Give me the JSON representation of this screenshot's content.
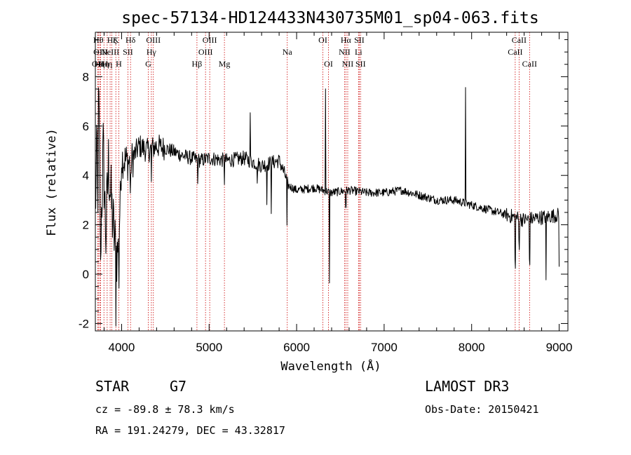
{
  "chart_data": {
    "type": "line",
    "title": "spec-57134-HD124433N430735M01_sp04-063.fits",
    "xlabel": "Wavelength (Å)",
    "ylabel": "Flux (relative)",
    "xlim": [
      3700,
      9100
    ],
    "ylim": [
      -2.3,
      9.8
    ],
    "xticks": [
      4000,
      5000,
      6000,
      7000,
      8000,
      9000
    ],
    "yticks": [
      -2,
      0,
      2,
      4,
      6,
      8
    ],
    "spectrum_anchors": [
      {
        "w": 3700,
        "f": 2.6
      },
      {
        "w": 3720,
        "f": 5.2
      },
      {
        "w": 3740,
        "f": 6.8
      },
      {
        "w": 3760,
        "f": 1.2
      },
      {
        "w": 3790,
        "f": 5.0
      },
      {
        "w": 3820,
        "f": 1.5
      },
      {
        "w": 3850,
        "f": 4.5
      },
      {
        "w": 3890,
        "f": 2.5
      },
      {
        "w": 3934,
        "f": 0.8
      },
      {
        "w": 3968,
        "f": 1.2
      },
      {
        "w": 4000,
        "f": 4.7
      },
      {
        "w": 4100,
        "f": 4.5
      },
      {
        "w": 4200,
        "f": 5.2
      },
      {
        "w": 4300,
        "f": 5.0
      },
      {
        "w": 4400,
        "f": 5.2
      },
      {
        "w": 4500,
        "f": 5.1
      },
      {
        "w": 4700,
        "f": 4.8
      },
      {
        "w": 4900,
        "f": 4.6
      },
      {
        "w": 5000,
        "f": 4.7
      },
      {
        "w": 5200,
        "f": 4.6
      },
      {
        "w": 5400,
        "f": 4.7
      },
      {
        "w": 5600,
        "f": 4.4
      },
      {
        "w": 5800,
        "f": 4.6
      },
      {
        "w": 5870,
        "f": 4.0
      },
      {
        "w": 5900,
        "f": 3.6
      },
      {
        "w": 6000,
        "f": 3.4
      },
      {
        "w": 6200,
        "f": 3.5
      },
      {
        "w": 6400,
        "f": 3.3
      },
      {
        "w": 6600,
        "f": 3.4
      },
      {
        "w": 6800,
        "f": 3.3
      },
      {
        "w": 7000,
        "f": 3.3
      },
      {
        "w": 7200,
        "f": 3.4
      },
      {
        "w": 7400,
        "f": 3.2
      },
      {
        "w": 7600,
        "f": 3.0
      },
      {
        "w": 7800,
        "f": 3.0
      },
      {
        "w": 8000,
        "f": 2.8
      },
      {
        "w": 8200,
        "f": 2.6
      },
      {
        "w": 8400,
        "f": 2.4
      },
      {
        "w": 8600,
        "f": 2.2
      },
      {
        "w": 8800,
        "f": 2.3
      },
      {
        "w": 9000,
        "f": 2.4
      }
    ],
    "features": [
      {
        "w": 3727,
        "d": -2.5
      },
      {
        "w": 3760,
        "d": -1.5
      },
      {
        "w": 3935,
        "d": -2.0
      },
      {
        "w": 3970,
        "d": -1.8
      },
      {
        "w": 4102,
        "d": -1.2
      },
      {
        "w": 4340,
        "d": -1.5
      },
      {
        "w": 4870,
        "d": -1.0
      },
      {
        "w": 5175,
        "d": -0.8
      },
      {
        "w": 5470,
        "d": 2.0
      },
      {
        "w": 5550,
        "d": -1.0
      },
      {
        "w": 5660,
        "d": -1.6
      },
      {
        "w": 5710,
        "d": -1.8
      },
      {
        "w": 5890,
        "d": -2.0
      },
      {
        "w": 6330,
        "d": 4.2
      },
      {
        "w": 6375,
        "d": -3.8
      },
      {
        "w": 6563,
        "d": -0.6
      },
      {
        "w": 7930,
        "d": 4.6
      },
      {
        "w": 8498,
        "d": -1.8
      },
      {
        "w": 8542,
        "d": -1.0
      },
      {
        "w": 8662,
        "d": -1.6
      },
      {
        "w": 8850,
        "d": -2.8
      },
      {
        "w": 9000,
        "d": -2.2
      }
    ],
    "emission_lines": [
      {
        "w": 3727,
        "label": "OII",
        "row": 2
      },
      {
        "w": 3734,
        "label": "Hθ",
        "row": 0
      },
      {
        "w": 3750,
        "label": "Hη",
        "row": 2
      },
      {
        "w": 3760,
        "label": "OIII",
        "row": 1
      },
      {
        "w": 3798,
        "label": "Hη",
        "row": 2
      },
      {
        "w": 3835,
        "label": "Hη",
        "row": 2
      },
      {
        "w": 3869,
        "label": "NeIII",
        "row": 1
      },
      {
        "w": 3889,
        "label": "Hζ",
        "row": 0
      },
      {
        "w": 3934,
        "label": "K",
        "row": 0
      },
      {
        "w": 3968,
        "label": "H",
        "row": 2
      },
      {
        "w": 4072,
        "label": "SII",
        "row": 1
      },
      {
        "w": 4102,
        "label": "Hδ",
        "row": 0
      },
      {
        "w": 4305,
        "label": "G",
        "row": 2
      },
      {
        "w": 4340,
        "label": "Hγ",
        "row": 1
      },
      {
        "w": 4363,
        "label": "OIII",
        "row": 0
      },
      {
        "w": 4861,
        "label": "Hβ",
        "row": 2
      },
      {
        "w": 4959,
        "label": "OIII",
        "row": 1
      },
      {
        "w": 5007,
        "label": "OIII",
        "row": 0
      },
      {
        "w": 5175,
        "label": "Mg",
        "row": 2
      },
      {
        "w": 5893,
        "label": "Na",
        "row": 1
      },
      {
        "w": 6300,
        "label": "OI",
        "row": 0
      },
      {
        "w": 6364,
        "label": "OI",
        "row": 2
      },
      {
        "w": 6548,
        "label": "NII",
        "row": 1
      },
      {
        "w": 6563,
        "label": "Hα",
        "row": 0
      },
      {
        "w": 6584,
        "label": "NII",
        "row": 2
      },
      {
        "w": 6707,
        "label": "Li",
        "row": 1
      },
      {
        "w": 6716,
        "label": "SII",
        "row": 0
      },
      {
        "w": 6731,
        "label": "SII",
        "row": 2
      },
      {
        "w": 8498,
        "label": "CaII",
        "row": 1
      },
      {
        "w": 8542,
        "label": "CaII",
        "row": 0
      },
      {
        "w": 8662,
        "label": "CaII",
        "row": 2
      }
    ]
  },
  "info": {
    "class": "STAR",
    "subclass": "G7",
    "survey": "LAMOST DR3",
    "redshift": "cz = -89.8 ± 78.3 km/s",
    "obs_date": "Obs-Date: 20150421",
    "coords": "RA = 191.24279, DEC =  43.32817"
  },
  "colors": {
    "spectrum": "#000000",
    "line_marker": "#cc0000",
    "axes": "#000000",
    "background": "#ffffff"
  }
}
